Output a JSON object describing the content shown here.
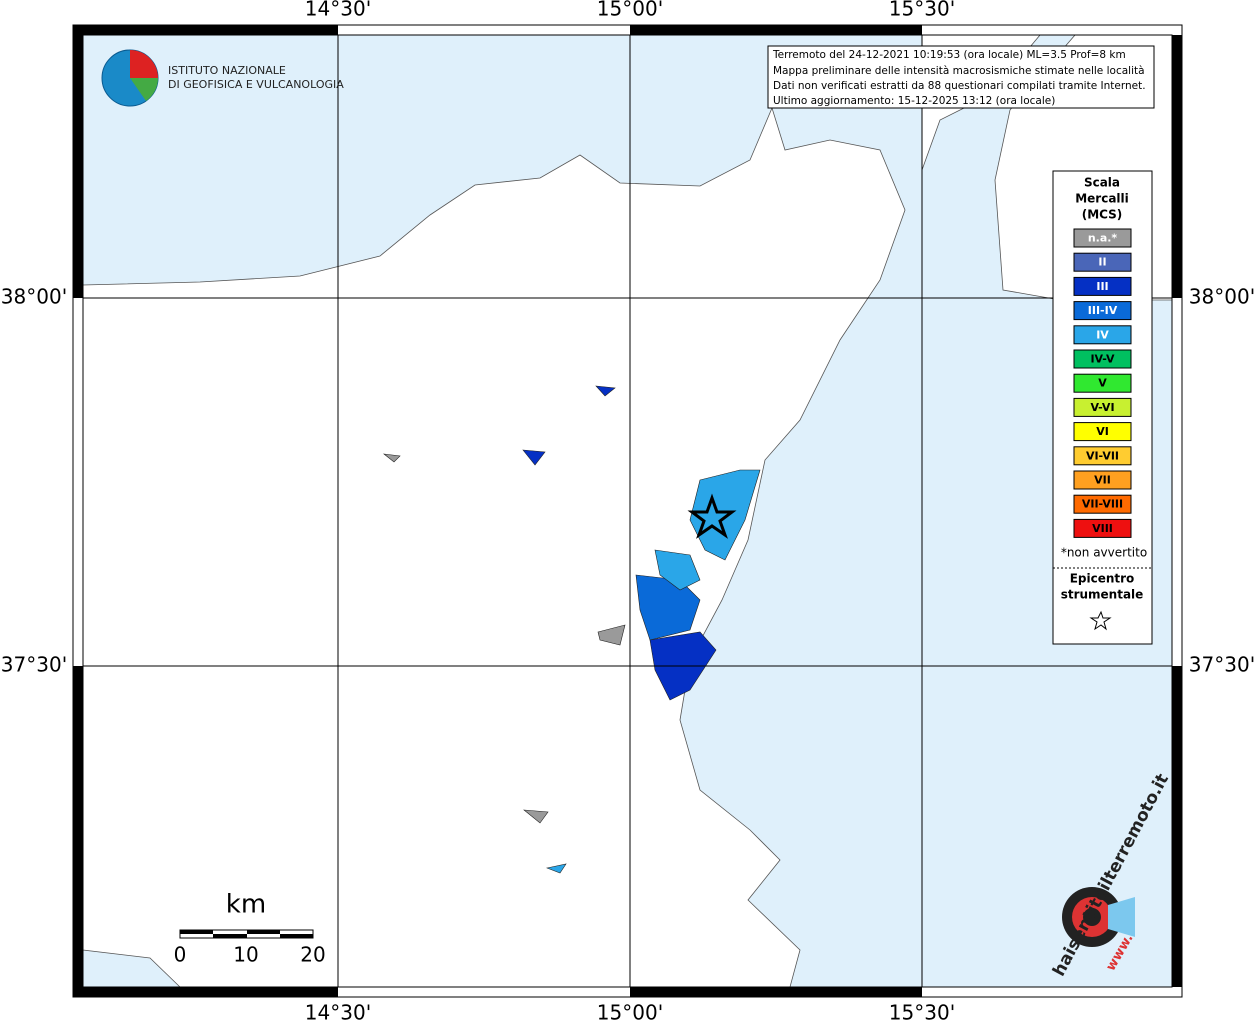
{
  "map": {
    "lon_labels": [
      "14°30'",
      "15°00'",
      "15°30'"
    ],
    "lat_labels": [
      "38°00'",
      "37°30'"
    ],
    "info": [
      "Terremoto del 24-12-2021 10:19:53 (ora locale) ML=3.5 Prof=8 km",
      "Mappa preliminare delle intensità macrosismiche stimate nelle località",
      "Dati non verificati estratti da 88 questionari compilati tramite Internet.",
      "Ultimo aggiornamento: 15-12-2025 13:12 (ora locale)"
    ],
    "logo": [
      "ISTITUTO NAZIONALE",
      "DI GEOFISICA E VULCANOLOGIA"
    ],
    "legend": {
      "title": [
        "Scala",
        "Mercalli",
        "(MCS)"
      ],
      "items": [
        {
          "label": "n.a.*",
          "color": "#9a9a9a"
        },
        {
          "label": "II",
          "color": "#4a66b8"
        },
        {
          "label": "III",
          "color": "#0530c4"
        },
        {
          "label": "III-IV",
          "color": "#0a6ad8"
        },
        {
          "label": "IV",
          "color": "#2aa6e8"
        },
        {
          "label": "IV-V",
          "color": "#00c060"
        },
        {
          "label": "V",
          "color": "#30e830"
        },
        {
          "label": "V-VI",
          "color": "#c8f030"
        },
        {
          "label": "VI",
          "color": "#ffff00"
        },
        {
          "label": "VI-VII",
          "color": "#ffcc30"
        },
        {
          "label": "VII",
          "color": "#ffa020"
        },
        {
          "label": "VII-VIII",
          "color": "#ff6a00"
        },
        {
          "label": "VIII",
          "color": "#ee1010"
        }
      ],
      "note": "*non avvertito",
      "epicentre": [
        "Epicentro",
        "strumentale"
      ]
    },
    "scale": {
      "unit": "km",
      "ticks": [
        "0",
        "10",
        "20"
      ]
    },
    "site_logo": [
      "haisentitoilterremoto.it",
      "www."
    ]
  }
}
